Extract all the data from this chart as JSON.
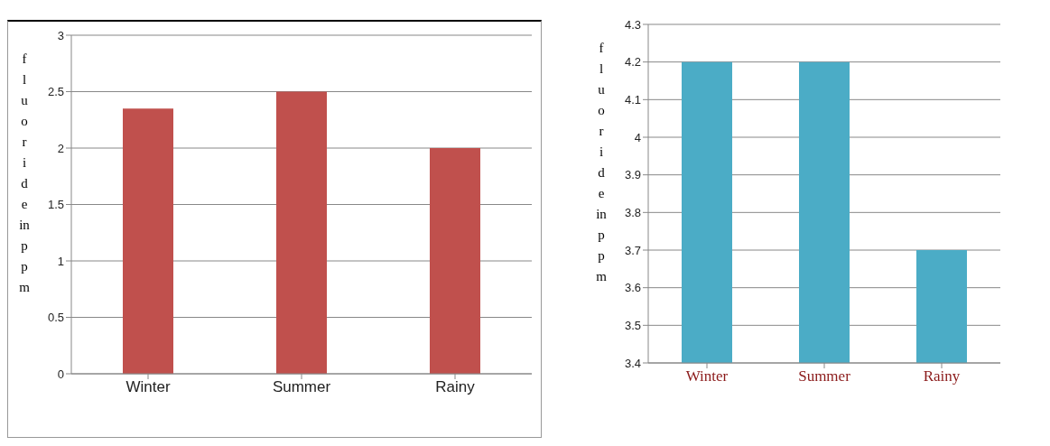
{
  "chart_data": [
    {
      "type": "bar",
      "ylabel": "fluoride in ppm",
      "categories": [
        "Winter",
        "Summer",
        "Rainy"
      ],
      "values": [
        2.35,
        2.5,
        2.0
      ],
      "color": "#c0504d",
      "ylim": [
        0,
        3
      ],
      "yticks": [
        0,
        0.5,
        1,
        1.5,
        2,
        2.5,
        3
      ],
      "grid": "y"
    },
    {
      "type": "bar",
      "ylabel": "fluoride in ppm",
      "categories": [
        "Winter",
        "Summer",
        "Rainy"
      ],
      "values": [
        4.2,
        4.2,
        3.7
      ],
      "color": "#4bacc6",
      "ylim": [
        3.4,
        4.3
      ],
      "yticks": [
        3.4,
        3.5,
        3.6,
        3.7,
        3.8,
        3.9,
        4,
        4.1,
        4.2,
        4.3
      ],
      "grid": "y"
    }
  ]
}
